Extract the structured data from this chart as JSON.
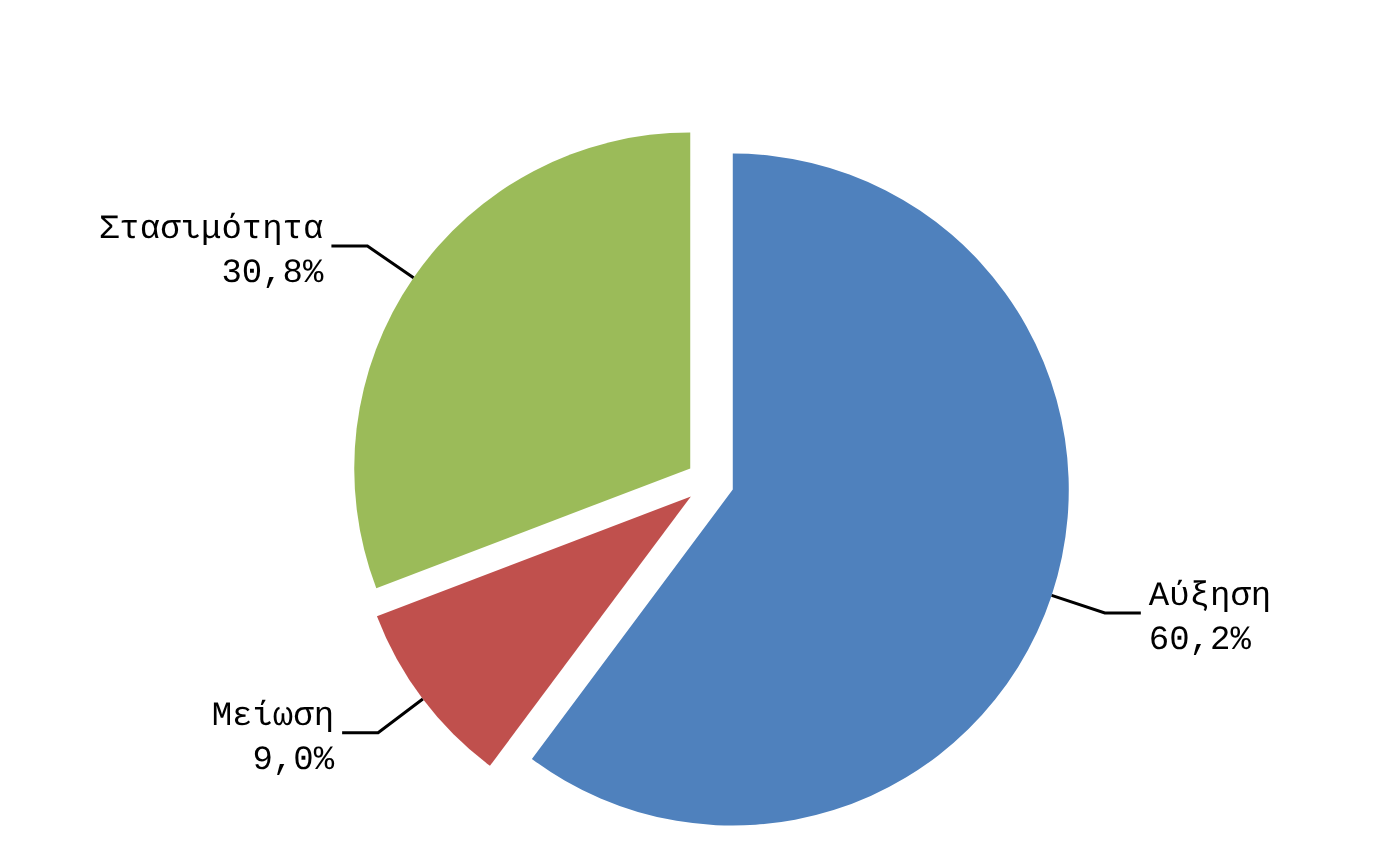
{
  "chart_data": {
    "type": "pie",
    "categories": [
      "Αύξηση",
      "Μείωση",
      "Στασιμότητα"
    ],
    "values": [
      60.2,
      9.0,
      30.8
    ],
    "value_labels": [
      "60,2%",
      "9,0%",
      "30,8%"
    ],
    "colors": [
      "#4f81bd",
      "#c0504d",
      "#9bbb59"
    ],
    "legend": false
  }
}
